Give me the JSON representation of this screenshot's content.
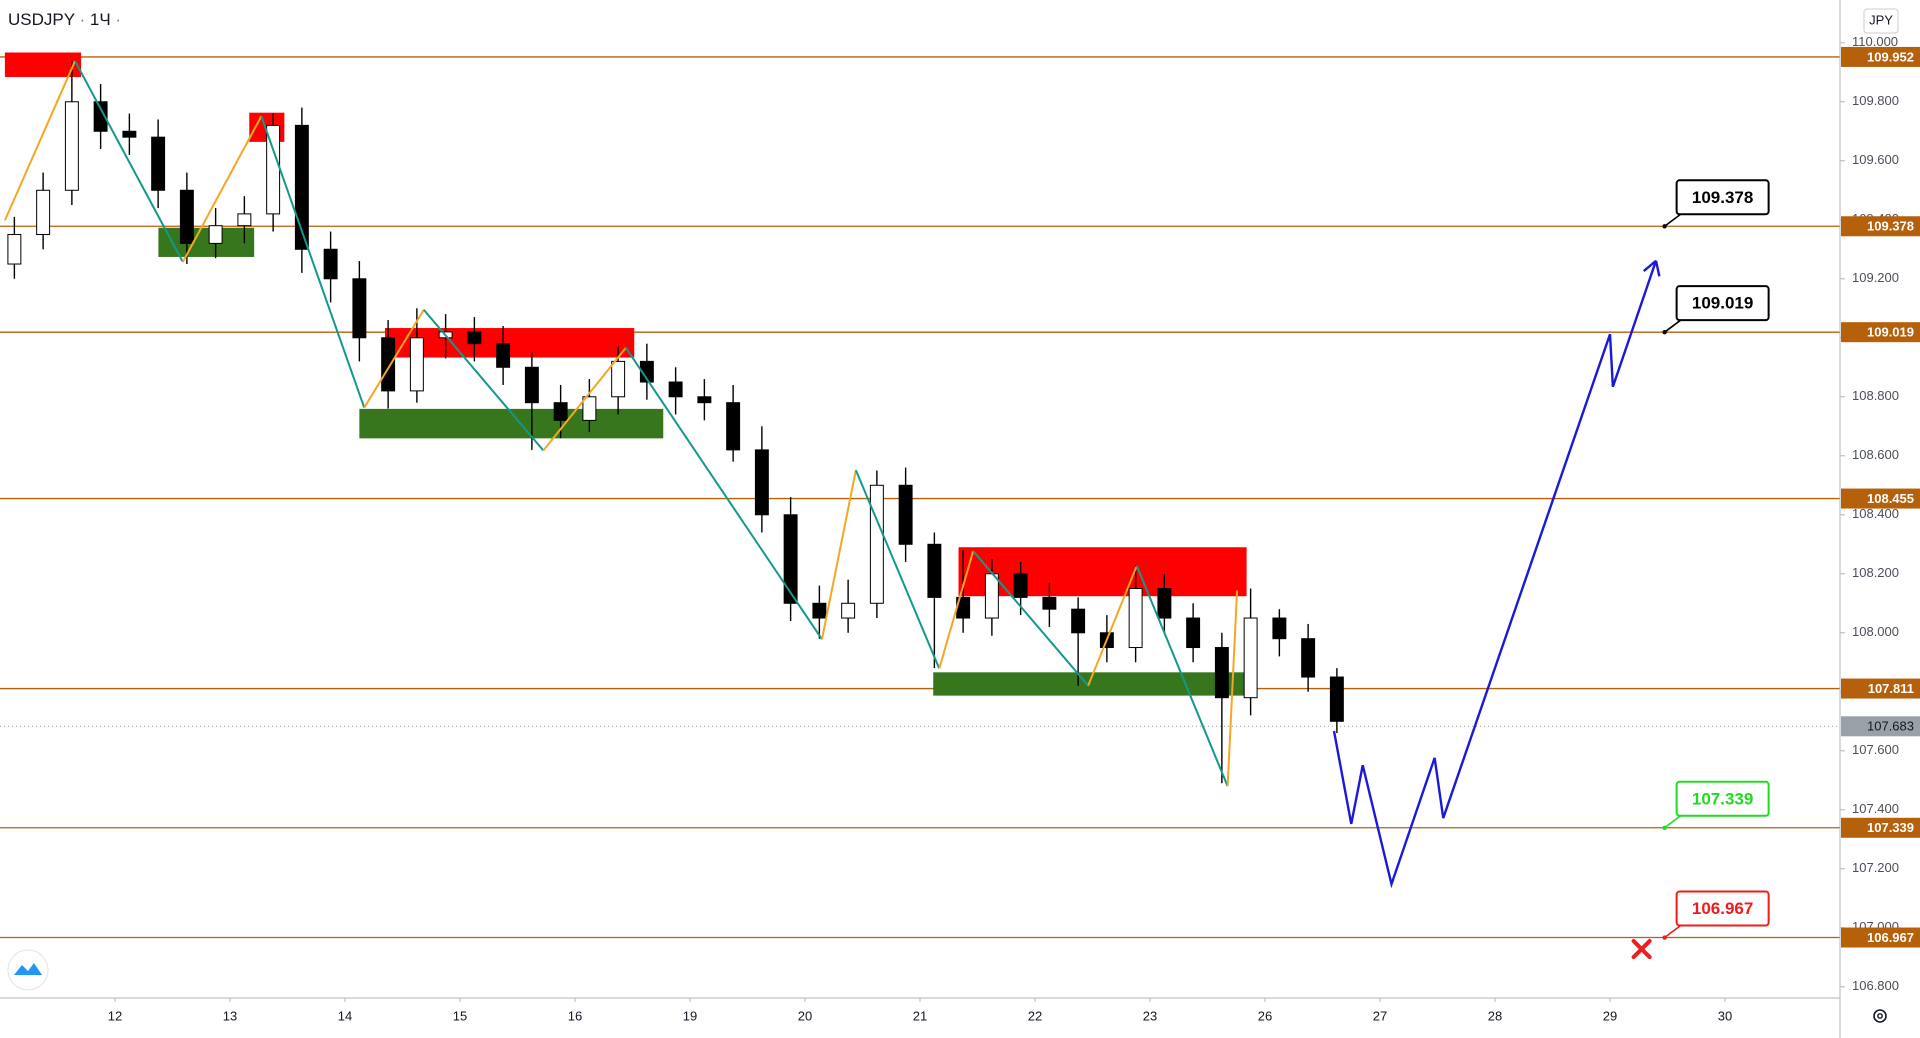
{
  "chart_data": {
    "type": "candlestick",
    "symbol": "USDJPY",
    "interval": "1Ч",
    "currency": "JPY",
    "categories": [
      null,
      null,
      null,
      null,
      "12",
      null,
      null,
      null,
      "13",
      null,
      null,
      null,
      "14",
      null,
      null,
      null,
      "15",
      null,
      null,
      null,
      "16",
      null,
      null,
      null,
      "19",
      null,
      null,
      null,
      "20",
      null,
      null,
      null,
      "21",
      null,
      null,
      null,
      "22",
      null,
      null,
      null,
      "23",
      null,
      null,
      null,
      "26",
      null,
      null,
      null,
      "27",
      null,
      null,
      null,
      "28",
      null,
      null,
      null,
      "29",
      null,
      null,
      null,
      "30",
      null,
      null,
      null
    ],
    "open": [
      109.25,
      109.35,
      109.5,
      109.8,
      109.7,
      109.68,
      109.5,
      109.32,
      109.38,
      109.42,
      109.72,
      109.3,
      109.2,
      109.0,
      108.82,
      109.0,
      109.02,
      108.98,
      108.9,
      108.78,
      108.72,
      108.8,
      108.92,
      108.85,
      108.8,
      108.78,
      108.62,
      108.4,
      108.1,
      108.05,
      108.1,
      108.5,
      108.3,
      108.12,
      108.05,
      108.2,
      108.12,
      108.08,
      108.0,
      107.95,
      108.15,
      108.05,
      107.95,
      107.78,
      108.05,
      107.98,
      107.85,
      null,
      null,
      null,
      null,
      null,
      null,
      null,
      null,
      null,
      null,
      null,
      null,
      null,
      null,
      null,
      null,
      null
    ],
    "high": [
      109.41,
      109.56,
      109.94,
      109.86,
      109.76,
      109.74,
      109.56,
      109.44,
      109.48,
      109.76,
      109.78,
      109.36,
      109.26,
      109.06,
      109.1,
      109.08,
      109.07,
      109.04,
      108.95,
      108.84,
      108.86,
      108.97,
      108.98,
      108.9,
      108.86,
      108.84,
      108.7,
      108.46,
      108.16,
      108.18,
      108.55,
      108.56,
      108.34,
      108.28,
      108.25,
      108.24,
      108.17,
      108.12,
      108.06,
      108.23,
      108.2,
      108.1,
      108.0,
      108.15,
      108.08,
      108.03,
      107.88,
      null,
      null,
      null,
      null,
      null,
      null,
      null,
      null,
      null,
      null,
      null,
      null,
      null,
      null,
      null,
      null,
      null
    ],
    "low": [
      109.2,
      109.3,
      109.45,
      109.64,
      109.62,
      109.44,
      109.25,
      109.27,
      109.32,
      109.36,
      109.22,
      109.12,
      108.92,
      108.76,
      108.78,
      108.93,
      108.92,
      108.84,
      108.62,
      108.66,
      108.68,
      108.74,
      108.79,
      108.74,
      108.72,
      108.58,
      108.34,
      108.04,
      107.98,
      108.0,
      108.05,
      108.24,
      107.88,
      108.0,
      107.99,
      108.06,
      108.02,
      107.82,
      107.9,
      107.9,
      108.0,
      107.9,
      107.49,
      107.72,
      107.92,
      107.8,
      107.66,
      null,
      null,
      null,
      null,
      null,
      null,
      null,
      null,
      null,
      null,
      null,
      null,
      null,
      null,
      null,
      null,
      null
    ],
    "close": [
      109.35,
      109.5,
      109.8,
      109.7,
      109.68,
      109.5,
      109.32,
      109.38,
      109.42,
      109.72,
      109.3,
      109.2,
      109.0,
      108.82,
      109.0,
      109.02,
      108.98,
      108.9,
      108.78,
      108.72,
      108.8,
      108.92,
      108.85,
      108.8,
      108.78,
      108.62,
      108.4,
      108.1,
      108.05,
      108.1,
      108.5,
      108.3,
      108.12,
      108.05,
      108.2,
      108.12,
      108.08,
      108.0,
      107.95,
      108.15,
      108.05,
      107.95,
      107.78,
      108.05,
      107.98,
      107.85,
      107.7,
      null,
      null,
      null,
      null,
      null,
      null,
      null,
      null,
      null,
      null,
      null,
      null,
      null,
      null,
      null,
      null,
      null
    ],
    "up_color": "#ffffff",
    "down_color": "#000000",
    "wick_color": "#000000",
    "ylim": [
      106.762,
      110.145
    ],
    "yticks": [
      {
        "value": 106.8,
        "label": "106.800"
      },
      {
        "value": 107.0,
        "label": "107.000"
      },
      {
        "value": 107.2,
        "label": "107.200"
      },
      {
        "value": 107.4,
        "label": "107.400"
      },
      {
        "value": 107.6,
        "label": "107.600"
      },
      {
        "value": 107.8,
        "label": "107.800"
      },
      {
        "value": 108.0,
        "label": "108.000"
      },
      {
        "value": 108.2,
        "label": "108.200"
      },
      {
        "value": 108.4,
        "label": "108.400"
      },
      {
        "value": 108.6,
        "label": "108.600"
      },
      {
        "value": 108.8,
        "label": "108.800"
      },
      {
        "value": 109.0,
        "label": "109.000"
      },
      {
        "value": 109.2,
        "label": "109.200"
      },
      {
        "value": 109.4,
        "label": "109.400"
      },
      {
        "value": 109.6,
        "label": "109.600"
      },
      {
        "value": 109.8,
        "label": "109.800"
      },
      {
        "value": 110.0,
        "label": "110.000"
      }
    ],
    "level_color": "#b5600b",
    "levels": [
      109.952,
      109.378,
      109.019,
      108.455,
      107.811,
      107.339,
      106.967
    ],
    "current_price": 107.683,
    "current_color": "#9aa0a8",
    "zones": [
      {
        "color": "#ff0000",
        "x": [
          0.17,
          2.82
        ],
        "y": [
          109.884,
          109.967
        ]
      },
      {
        "color": "#ff0000",
        "x": [
          8.67,
          9.89
        ],
        "y": [
          109.664,
          109.763
        ]
      },
      {
        "color": "#38761d",
        "x": [
          5.51,
          8.84
        ],
        "y": [
          109.274,
          109.373
        ]
      },
      {
        "color": "#ff0000",
        "x": [
          13.39,
          22.06
        ],
        "y": [
          108.933,
          109.033
        ]
      },
      {
        "color": "#38761d",
        "x": [
          12.5,
          23.07
        ],
        "y": [
          108.659,
          108.759
        ]
      },
      {
        "color": "#ff0000",
        "x": [
          33.34,
          43.36
        ],
        "y": [
          108.124,
          108.29
        ]
      },
      {
        "color": "#38761d",
        "x": [
          32.46,
          43.36
        ],
        "y": [
          107.787,
          107.866
        ]
      }
    ],
    "zigzag": {
      "up_color": "#f5a623",
      "down_color": "#13988a",
      "x": [
        0.17,
        2.61,
        6.36,
        9.09,
        12.67,
        14.74,
        18.9,
        21.77,
        28.59,
        29.77,
        32.67,
        33.85,
        37.85,
        39.54,
        42.7,
        43.03
      ],
      "y": [
        109.398,
        109.938,
        109.257,
        109.751,
        108.763,
        109.095,
        108.618,
        108.966,
        107.978,
        108.551,
        107.879,
        108.277,
        107.821,
        108.227,
        107.48,
        108.144
      ]
    },
    "projection": {
      "color": "#1a1ad6",
      "x": [
        46.4,
        47.0,
        47.4,
        48.4,
        49.9,
        50.2,
        56.0,
        56.1,
        57.6
      ],
      "y": [
        107.667,
        107.352,
        107.551,
        107.148,
        107.576,
        107.372,
        109.012,
        108.834,
        109.261
      ]
    },
    "callout_x": 57.9,
    "callouts": [
      {
        "value": 109.378,
        "color": "#000000"
      },
      {
        "value": 109.019,
        "color": "#000000"
      },
      {
        "value": 107.339,
        "color": "#1fdc1f"
      },
      {
        "value": 106.967,
        "color": "#ee1c1c"
      }
    ],
    "stop_marker": {
      "x": 57.1,
      "y": 106.928,
      "color": "#ee1c1c"
    }
  }
}
